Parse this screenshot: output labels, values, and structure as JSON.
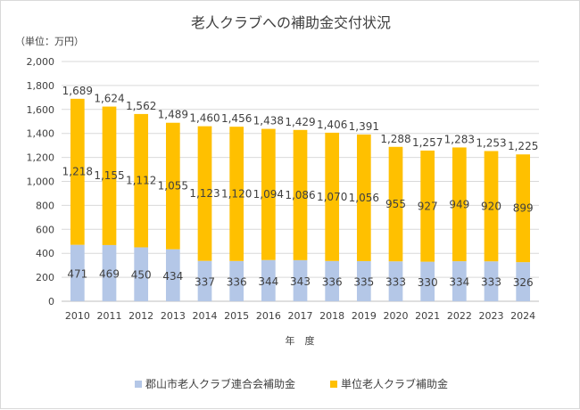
{
  "chart_data": {
    "type": "bar",
    "stacked": true,
    "title": "老人クラブへの補助金交付状況",
    "unit_label": "（単位：万円）",
    "xlabel": "年　度",
    "ylabel": "",
    "ylim": [
      0,
      2000
    ],
    "yticks": [
      0,
      200,
      400,
      600,
      800,
      1000,
      1200,
      1400,
      1600,
      1800,
      2000
    ],
    "ytick_labels": [
      "0",
      "200",
      "400",
      "600",
      "800",
      "1,000",
      "1,200",
      "1,400",
      "1,600",
      "1,800",
      "2,000"
    ],
    "grid": true,
    "legend_position": "bottom",
    "categories": [
      "2010",
      "2011",
      "2012",
      "2013",
      "2014",
      "2015",
      "2016",
      "2017",
      "2018",
      "2019",
      "2020",
      "2021",
      "2022",
      "2023",
      "2024"
    ],
    "series": [
      {
        "name": "郡山市老人クラブ連合会補助金",
        "color": "#b4c7e7",
        "values": [
          471,
          469,
          450,
          434,
          337,
          336,
          344,
          343,
          336,
          335,
          333,
          330,
          334,
          333,
          326
        ],
        "labels": [
          "471",
          "469",
          "450",
          "434",
          "337",
          "336",
          "344",
          "343",
          "336",
          "335",
          "333",
          "330",
          "334",
          "333",
          "326"
        ]
      },
      {
        "name": "単位老人クラブ補助金",
        "color": "#ffc000",
        "values": [
          1218,
          1155,
          1112,
          1055,
          1123,
          1120,
          1094,
          1086,
          1070,
          1056,
          955,
          927,
          949,
          920,
          899
        ],
        "labels": [
          "1,218",
          "1,155",
          "1,112",
          "1,055",
          "1,123",
          "1,120",
          "1,094",
          "1,086",
          "1,070",
          "1,056",
          "955",
          "927",
          "949",
          "920",
          "899"
        ]
      }
    ],
    "totals": [
      1689,
      1624,
      1562,
      1489,
      1460,
      1456,
      1438,
      1429,
      1406,
      1391,
      1288,
      1257,
      1283,
      1253,
      1225
    ],
    "total_labels": [
      "1,689",
      "1,624",
      "1,562",
      "1,489",
      "1,460",
      "1,456",
      "1,438",
      "1,429",
      "1,406",
      "1,391",
      "1,288",
      "1,257",
      "1,283",
      "1,253",
      "1,225"
    ]
  }
}
